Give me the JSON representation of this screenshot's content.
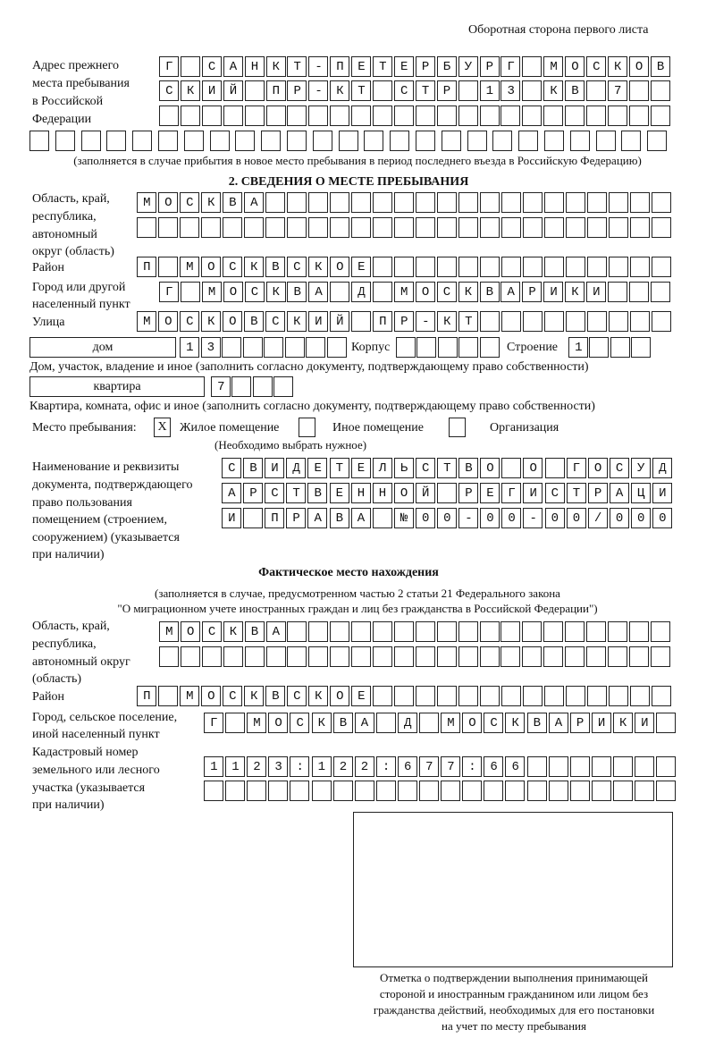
{
  "header": {
    "title": "Оборотная сторона первого листа"
  },
  "prev_address": {
    "label": [
      "Адрес прежнего",
      "места пребывания",
      "в Российской",
      "Федерации"
    ],
    "rows": [
      "Г САНКТ-ПЕТЕРБУРГ МОСКОВ",
      "СКИЙ ПР-КТ СТР 13 КВ 7  ",
      "                        ",
      "                         "
    ],
    "note": "(заполняется в случае прибытия в новое место пребывания в период последнего въезда в Российскую Федерацию)"
  },
  "section2": {
    "title": "2. СВЕДЕНИЯ О МЕСТЕ ПРЕБЫВАНИЯ",
    "region_label": [
      "Область, край,",
      "республика,",
      "автономный",
      "округ (область)"
    ],
    "region_rows": [
      "МОСКВА                   ",
      "                         "
    ],
    "district_label": "Район",
    "district_row": "П МОСКВСКОЕ              ",
    "city_label": [
      "Город или другой",
      "населенный пункт"
    ],
    "city_row": "Г МОСКВА Д МОСКВАРИКИ   ",
    "street_label": "Улица",
    "street_row": "МОСКОВСКИЙ ПР-КТ         ",
    "house_type": "дом",
    "house_cells": "13      ",
    "building_label": "Корпус",
    "building_cells": "     ",
    "structure_label": "Строение",
    "structure_cells": "1   ",
    "house_note": "Дом, участок, владение и иное (заполнить согласно документу, подтверждающему право собственности)",
    "apartment_type": "квартира",
    "apartment_cells": "7   ",
    "apartment_note": "Квартира, комната, офис и иное (заполнить согласно документу, подтверждающему право собственности)",
    "place_label": "Место пребывания:",
    "place_options": [
      {
        "label": "Жилое помещение",
        "mark": "X"
      },
      {
        "label": "Иное помещение",
        "mark": ""
      },
      {
        "label": "Организация",
        "mark": ""
      }
    ],
    "place_note": "(Необходимо выбрать нужное)",
    "doc_label": [
      "Наименование и реквизиты",
      "документа, подтверждающего",
      "право пользования",
      "помещением (строением,",
      "сооружением) (указывается",
      "при наличии)"
    ],
    "doc_rows": [
      "СВИДЕТЕЛЬСТВО О ГОСУД",
      "АРСТВЕННОЙ РЕГИСТРАЦИ",
      "И ПРАВА №00-00-00/000"
    ]
  },
  "actual": {
    "title": "Фактическое место нахождения",
    "note": [
      "(заполняется в случае, предусмотренном частью 2 статьи 21 Федерального закона",
      "\"О миграционном учете иностранных граждан и лиц без гражданства в Российской Федерации\")"
    ],
    "region_label": [
      "Область, край,",
      "республика,",
      "автономный округ",
      "(область)"
    ],
    "region_rows": [
      "МОСКВА                  ",
      "                        "
    ],
    "district_label": "Район",
    "district_row": "П МОСКВСКОЕ              ",
    "city_label": [
      "Город, сельское поселение,",
      "иной населенный пункт"
    ],
    "city_row": "Г МОСКВА Д МОСКВАРИКИ ",
    "cadastre_label": [
      "Кадастровый номер",
      "земельного или лесного",
      "участка (указывается",
      "при наличии)"
    ],
    "cadastre_rows": [
      "1123:122:677:66       ",
      "                      "
    ]
  },
  "stamp": {
    "caption": [
      "Отметка о подтверждении выполнения принимающей",
      "стороной и иностранным гражданином или лицом без",
      "гражданства действий, необходимых для его постановки",
      "на учет по месту пребывания"
    ]
  }
}
